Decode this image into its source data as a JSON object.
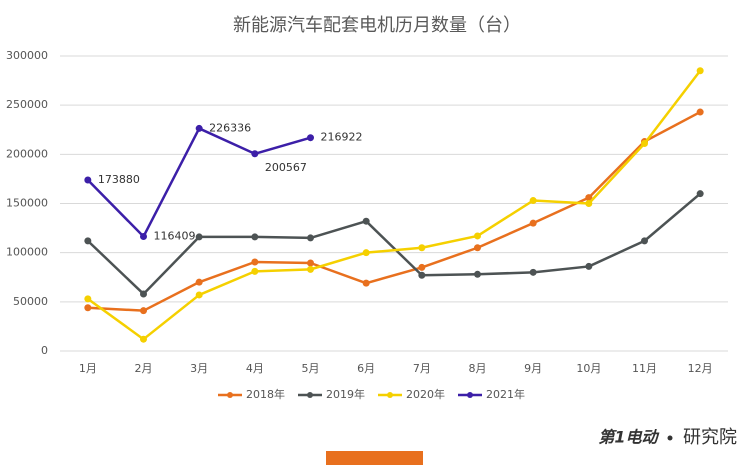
{
  "chart_data": {
    "type": "line",
    "title": "新能源汽车配套电机历月数量（台）",
    "categories": [
      "1月",
      "2月",
      "3月",
      "4月",
      "5月",
      "6月",
      "7月",
      "8月",
      "9月",
      "10月",
      "11月",
      "12月"
    ],
    "series": [
      {
        "name": "2018年",
        "color": "#e8701e",
        "values": [
          44000,
          41000,
          70000,
          90500,
          89500,
          69000,
          85000,
          105000,
          130000,
          156000,
          213000,
          243000
        ]
      },
      {
        "name": "2019年",
        "color": "#4d5354",
        "values": [
          112000,
          58000,
          116000,
          116000,
          115000,
          132000,
          77000,
          78000,
          80000,
          86000,
          112000,
          160000
        ]
      },
      {
        "name": "2020年",
        "color": "#f5d000",
        "values": [
          53000,
          12000,
          57000,
          81000,
          83000,
          100000,
          105000,
          117000,
          153000,
          150000,
          211000,
          285000
        ]
      },
      {
        "name": "2021年",
        "color": "#3c1fa8",
        "values": [
          173880,
          116409,
          226336,
          200567,
          216922,
          null,
          null,
          null,
          null,
          null,
          null,
          null
        ],
        "data_labels": true
      }
    ],
    "ylim": [
      0,
      300000
    ],
    "yticks": [
      0,
      50000,
      100000,
      150000,
      200000,
      250000,
      300000
    ],
    "grid": true,
    "legend": "bottom",
    "logo": "第1电动",
    "logo_suffix": "研究院"
  }
}
